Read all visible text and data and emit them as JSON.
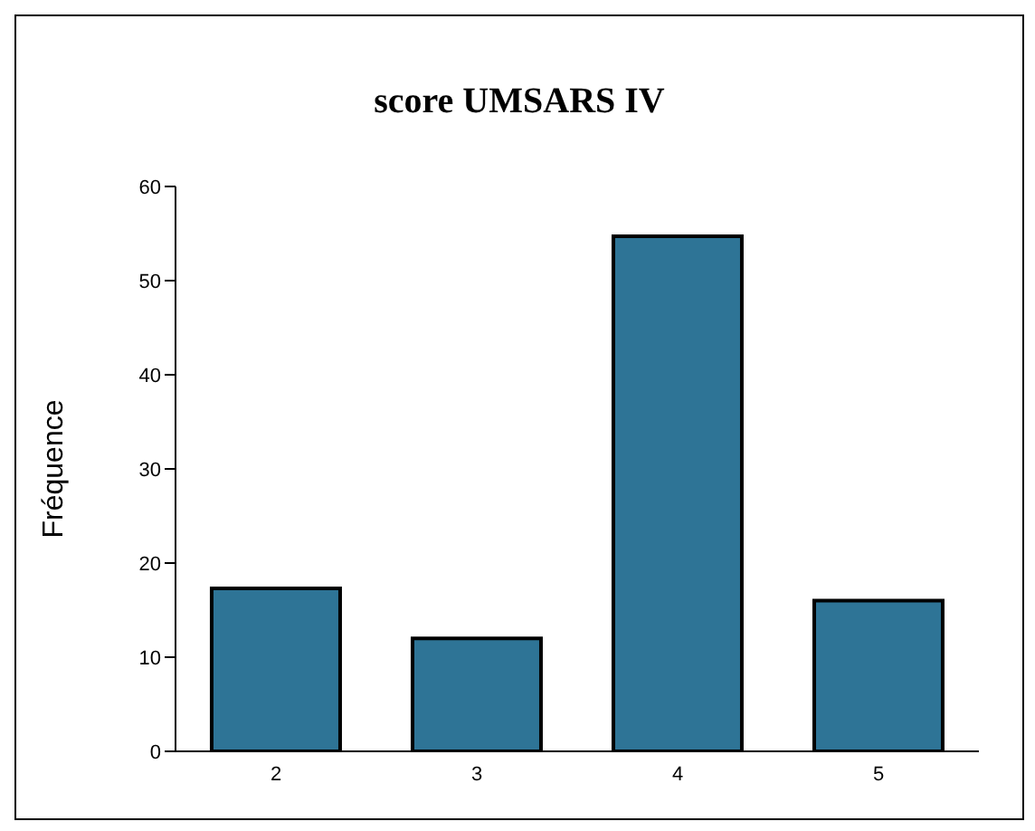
{
  "chart_data": {
    "type": "bar",
    "title": "score UMSARS IV",
    "ylabel": "Fréquence",
    "categories": [
      "2",
      "3",
      "4",
      "5"
    ],
    "values": [
      17.3,
      12,
      54.7,
      16
    ],
    "color": "#2e7496",
    "ylim": [
      0,
      60
    ],
    "yticks": [
      0,
      10,
      20,
      30,
      40,
      50,
      60
    ],
    "grid": false,
    "legend": false
  }
}
